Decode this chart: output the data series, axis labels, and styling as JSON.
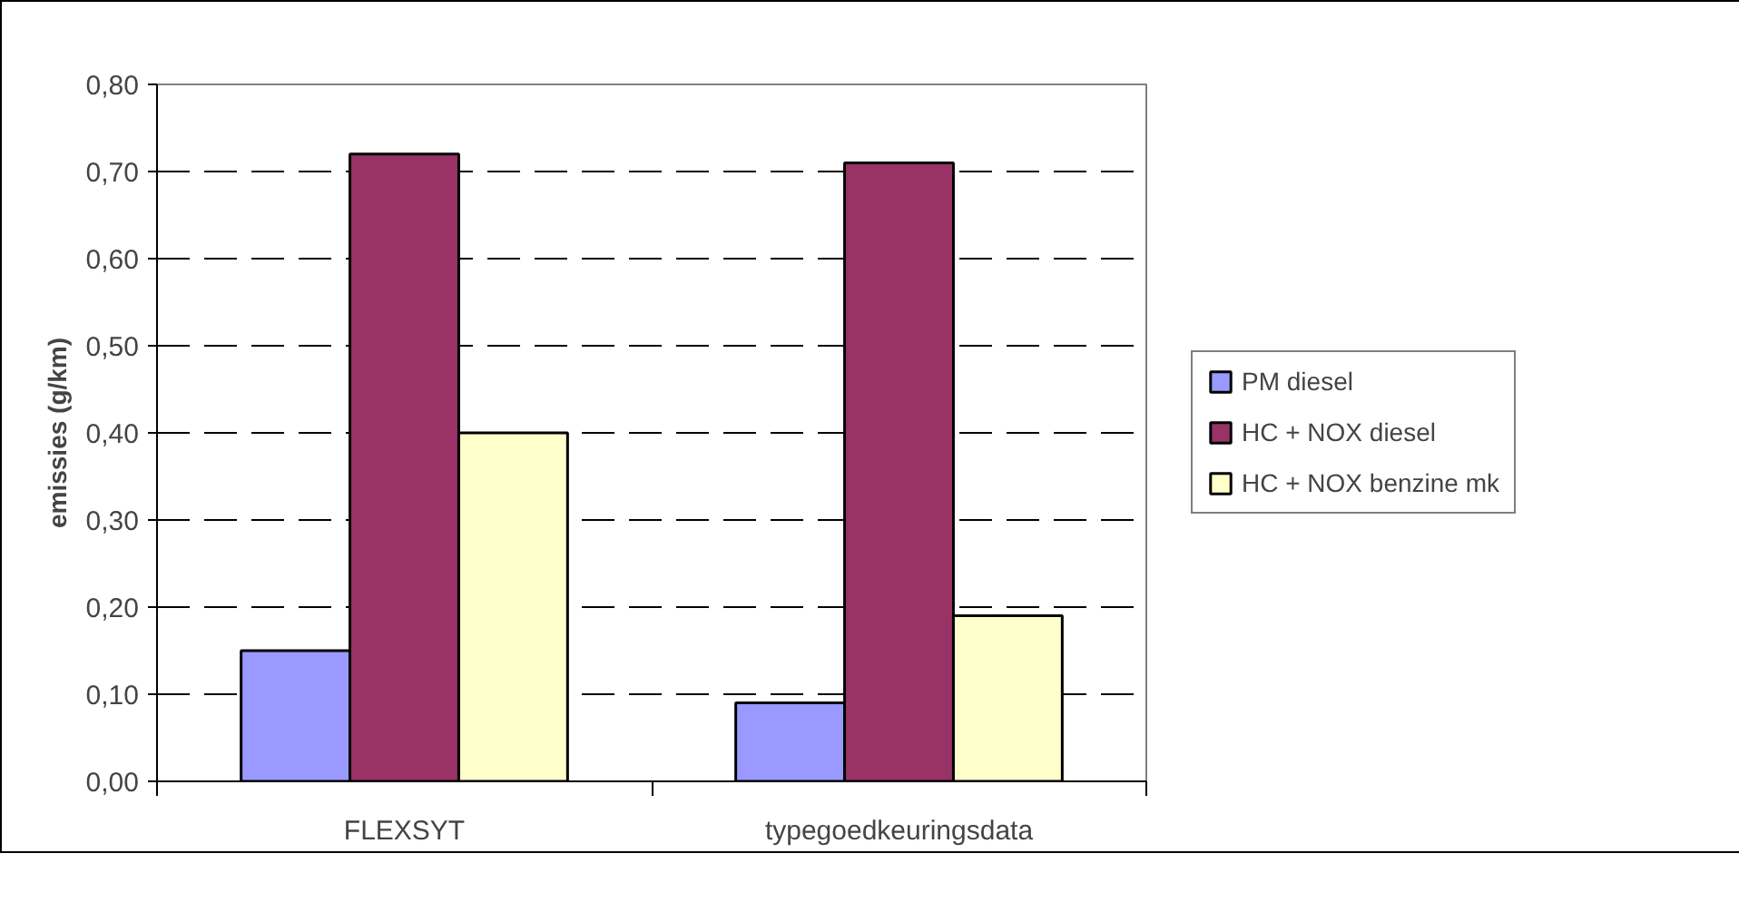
{
  "chart_data": {
    "type": "bar",
    "ylabel": "emissies (g/km)",
    "categories": [
      "FLEXSYT",
      "typegoedkeuringsdata"
    ],
    "series": [
      {
        "name": "PM diesel",
        "color": "#9999ff",
        "values": [
          0.15,
          0.09
        ]
      },
      {
        "name": "HC + NOX diesel",
        "color": "#993366",
        "values": [
          0.72,
          0.71
        ]
      },
      {
        "name": "HC + NOX benzine mk",
        "color": "#ffffcc",
        "values": [
          0.4,
          0.19
        ]
      }
    ],
    "ylim": [
      0,
      0.8
    ],
    "yticks": [
      {
        "value": 0,
        "label": "0,00"
      },
      {
        "value": 0.1,
        "label": "0,10"
      },
      {
        "value": 0.2,
        "label": "0,20"
      },
      {
        "value": 0.3,
        "label": "0,30"
      },
      {
        "value": 0.4,
        "label": "0,40"
      },
      {
        "value": 0.5,
        "label": "0,50"
      },
      {
        "value": 0.6,
        "label": "0,60"
      },
      {
        "value": 0.7,
        "label": "0,70"
      },
      {
        "value": 0.8,
        "label": "0,80"
      }
    ],
    "grid": "y",
    "legend": "right"
  }
}
